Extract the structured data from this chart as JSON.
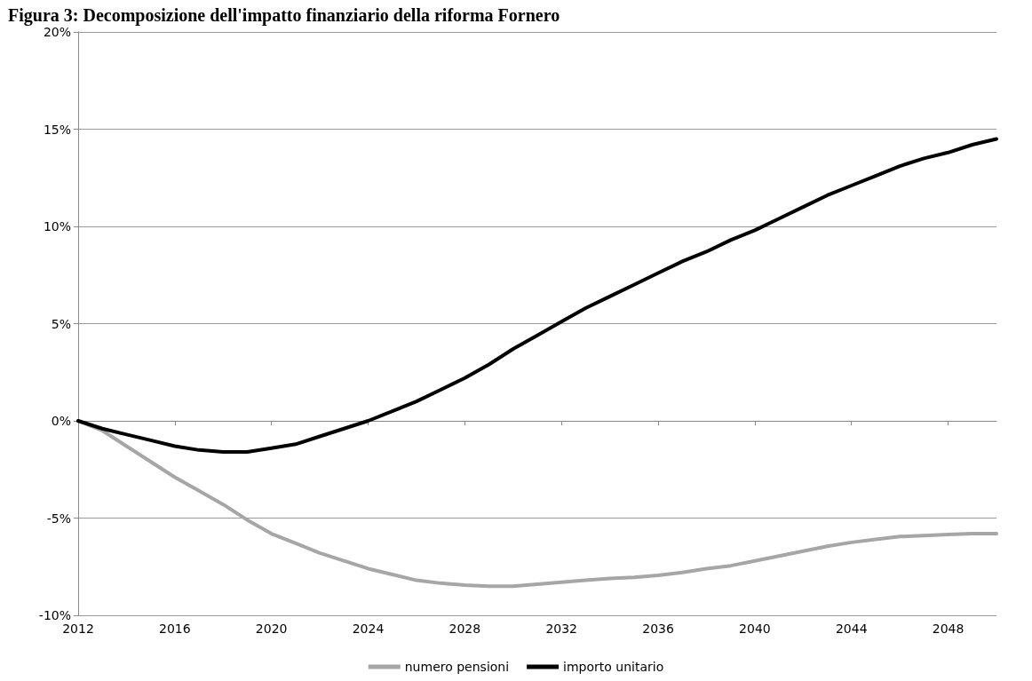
{
  "chart_data": {
    "type": "line",
    "title": "Figura 3: Decomposizione dell'impatto finanziario della riforma Fornero",
    "x": [
      2012,
      2013,
      2014,
      2015,
      2016,
      2017,
      2018,
      2019,
      2020,
      2021,
      2022,
      2023,
      2024,
      2025,
      2026,
      2027,
      2028,
      2029,
      2030,
      2031,
      2032,
      2033,
      2034,
      2035,
      2036,
      2037,
      2038,
      2039,
      2040,
      2041,
      2042,
      2043,
      2044,
      2045,
      2046,
      2047,
      2048,
      2049,
      2050
    ],
    "series": [
      {
        "name": "numero pensioni",
        "color": "#a6a6a6",
        "values": [
          0,
          -0.5,
          -1.3,
          -2.1,
          -2.9,
          -3.6,
          -4.3,
          -5.1,
          -5.8,
          -6.3,
          -6.8,
          -7.2,
          -7.6,
          -7.9,
          -8.2,
          -8.35,
          -8.45,
          -8.5,
          -8.5,
          -8.4,
          -8.3,
          -8.2,
          -8.1,
          -8.05,
          -7.95,
          -7.8,
          -7.6,
          -7.45,
          -7.2,
          -6.95,
          -6.7,
          -6.45,
          -6.25,
          -6.1,
          -5.95,
          -5.9,
          -5.85,
          -5.8,
          -5.8
        ]
      },
      {
        "name": "importo unitario",
        "color": "#000000",
        "values": [
          0,
          -0.4,
          -0.7,
          -1.0,
          -1.3,
          -1.5,
          -1.6,
          -1.6,
          -1.4,
          -1.2,
          -0.8,
          -0.4,
          0,
          0.5,
          1.0,
          1.6,
          2.2,
          2.9,
          3.7,
          4.4,
          5.1,
          5.8,
          6.4,
          7.0,
          7.6,
          8.2,
          8.7,
          9.3,
          9.8,
          10.4,
          11.0,
          11.6,
          12.1,
          12.6,
          13.1,
          13.5,
          13.8,
          14.2,
          14.5
        ]
      }
    ],
    "xlim": [
      2012,
      2050
    ],
    "xticks": [
      2012,
      2016,
      2020,
      2024,
      2028,
      2032,
      2036,
      2040,
      2044,
      2048
    ],
    "ylim": [
      -10,
      20
    ],
    "yticks": [
      {
        "value": -10,
        "label": "-10%"
      },
      {
        "value": -5,
        "label": "-5%"
      },
      {
        "value": 0,
        "label": "0%"
      },
      {
        "value": 5,
        "label": "5%"
      },
      {
        "value": 10,
        "label": "10%"
      },
      {
        "value": 15,
        "label": "15%"
      },
      {
        "value": 20,
        "label": "20%"
      }
    ],
    "grid": "y",
    "legend": "bottom",
    "marker": "none",
    "line_style": "solid"
  }
}
